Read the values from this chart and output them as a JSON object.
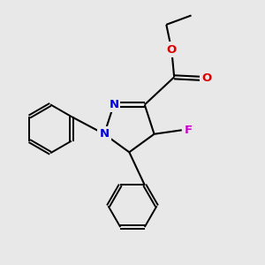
{
  "bg_color": "#e8e8e8",
  "bond_color": "#000000",
  "N_color": "#0000dd",
  "O_color": "#dd0000",
  "F_color": "#cc00cc",
  "lw": 1.5,
  "dbo": 0.032,
  "xlim": [
    -1.7,
    2.0
  ],
  "ylim": [
    -2.3,
    1.7
  ]
}
